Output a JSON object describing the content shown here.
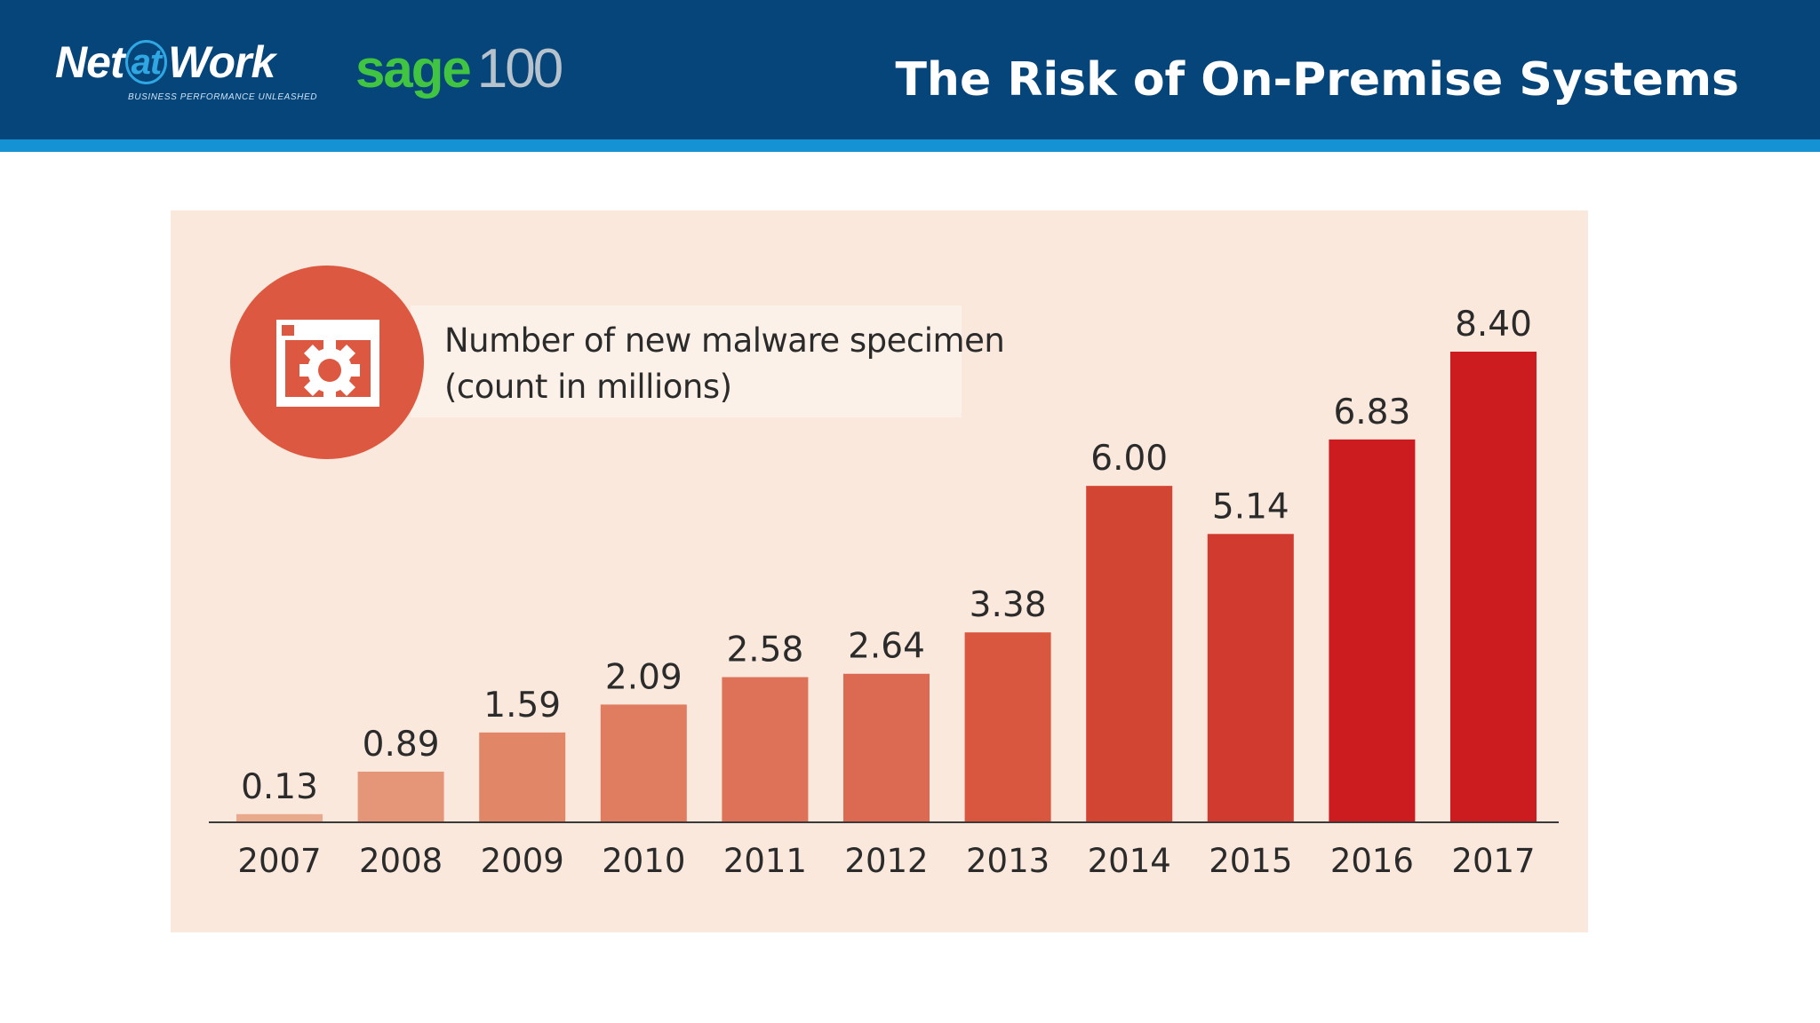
{
  "header": {
    "brand": {
      "prefix": "Net",
      "at": "at",
      "suffix": "Work",
      "tagline": "BUSINESS PERFORMANCE UNLEASHED"
    },
    "product": {
      "name": "sage",
      "version": "100"
    },
    "title": "The Risk of On-Premise Systems",
    "colors": {
      "background": "#05457a",
      "stripe": "#1592d3",
      "sage_green": "#41c441"
    }
  },
  "legend": {
    "icon": "malware-window-gear-icon",
    "line1": "Number of new malware specimen",
    "line2": "(count in millions)"
  },
  "chart_data": {
    "type": "bar",
    "categories": [
      "2007",
      "2008",
      "2009",
      "2010",
      "2011",
      "2012",
      "2013",
      "2014",
      "2015",
      "2016",
      "2017"
    ],
    "values": [
      0.13,
      0.89,
      1.59,
      2.09,
      2.58,
      2.64,
      3.38,
      6.0,
      5.14,
      6.83,
      8.4
    ],
    "value_labels": [
      "0.13",
      "0.89",
      "1.59",
      "2.09",
      "2.58",
      "2.64",
      "3.38",
      "6.00",
      "5.14",
      "6.83",
      "8.40"
    ],
    "title": "",
    "xlabel": "",
    "ylabel": "",
    "ylim": [
      0,
      8.4
    ],
    "grid": false,
    "bar_colors": [
      "#e9a98d",
      "#e59578",
      "#e28668",
      "#e07d61",
      "#dd7259",
      "#dc6a53",
      "#d9573f",
      "#d34533",
      "#d03a2f",
      "#cc1c20",
      "#cc1c20"
    ],
    "panel_color": "#fae8dc"
  }
}
